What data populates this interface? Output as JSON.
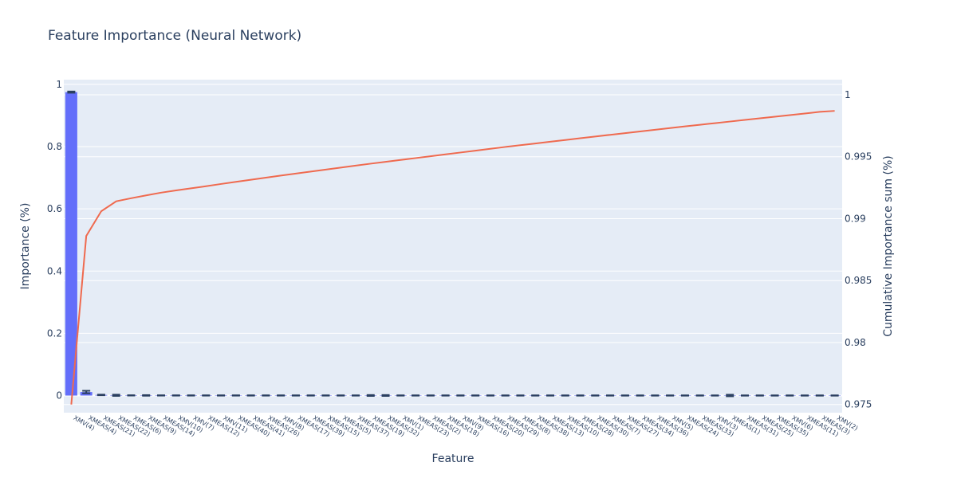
{
  "chart_data": {
    "type": "bar",
    "title": "Feature Importance (Neural Network)",
    "xlabel": "Feature",
    "ylabel": "Importance (%)",
    "y2label": "Cumulative Importance sum (%)",
    "ylim": [
      -0.055,
      1.015
    ],
    "y2lim": [
      0.97434,
      1.00122
    ],
    "yticks": [
      0,
      0.2,
      0.4,
      0.6,
      0.8,
      1
    ],
    "y2ticks": [
      0.975,
      0.98,
      0.985,
      0.99,
      0.995,
      1
    ],
    "categories": [
      "XMV(4)",
      "XMEAS(4)",
      "XMEAS(21)",
      "XMEAS(22)",
      "XMEAS(6)",
      "XMEAS(9)",
      "XMEAS(14)",
      "XMV(10)",
      "XMV(7)",
      "XMEAS(12)",
      "XMV(11)",
      "XMEAS(40)",
      "XMEAS(41)",
      "XMEAS(26)",
      "XMV(8)",
      "XMEAS(17)",
      "XMEAS(39)",
      "XMEAS(15)",
      "XMEAS(5)",
      "XMEAS(37)",
      "XMEAS(19)",
      "XMEAS(32)",
      "XMV(1)",
      "XMEAS(23)",
      "XMEAS(2)",
      "XMEAS(18)",
      "XMV(9)",
      "XMEAS(16)",
      "XMEAS(20)",
      "XMEAS(29)",
      "XMEAS(8)",
      "XMEAS(38)",
      "XMEAS(13)",
      "XMEAS(10)",
      "XMEAS(28)",
      "XMEAS(30)",
      "XMEAS(7)",
      "XMEAS(27)",
      "XMEAS(34)",
      "XMEAS(36)",
      "XMV(5)",
      "XMEAS(24)",
      "XMEAS(33)",
      "XMV(3)",
      "XMEAS(1)",
      "XMEAS(31)",
      "XMEAS(25)",
      "XMEAS(35)",
      "XMV(6)",
      "XMEAS(11)",
      "XMEAS(3)",
      "XMV(2)"
    ],
    "series": [
      {
        "type": "bar",
        "name": "",
        "color": "#636efa",
        "values": [
          0.975,
          0.0113,
          0.002,
          0.00085,
          0.00055,
          0.00045,
          0.0004,
          0.00036,
          0.00034,
          0.00033,
          0.00032,
          0.00031,
          0.0003,
          0.00029,
          0.00028,
          0.00027,
          0.00027,
          0.00026,
          0.00026,
          0.00025,
          0.00025,
          0.00024,
          0.00024,
          0.00024,
          0.00023,
          0.00023,
          0.00022,
          0.00022,
          0.00022,
          0.00021,
          0.00021,
          0.00021,
          0.0002,
          0.0002,
          0.0002,
          0.0002,
          0.00019,
          0.00019,
          0.00019,
          0.00019,
          0.00018,
          0.00018,
          0.00018,
          0.00018,
          0.00018,
          0.00017,
          0.00017,
          0.00017,
          0.00017,
          0.00016,
          0.00016,
          0.00016
        ],
        "error": [
          0.002,
          0.004,
          0.001,
          0.002,
          0.0005,
          0.001,
          0.0005,
          0.0005,
          0.0005,
          0.0005,
          0.0005,
          0.0005,
          0.0005,
          0.0005,
          0.0005,
          0.0005,
          0.0005,
          0.0005,
          0.0005,
          0.0005,
          0.0015,
          0.0015,
          0.0005,
          0.0005,
          0.0005,
          0.0005,
          0.0005,
          0.0005,
          0.0005,
          0.0005,
          0.0005,
          0.0005,
          0.0005,
          0.0005,
          0.0005,
          0.0005,
          0.0005,
          0.0005,
          0.0005,
          0.0005,
          0.0005,
          0.0005,
          0.0005,
          0.0005,
          0.0025,
          0.0005,
          0.0005,
          0.0005,
          0.0005,
          0.0005,
          0.0005,
          0.0005
        ],
        "error_color": "#2a3f5f"
      },
      {
        "type": "line",
        "name": "",
        "axis": "y2",
        "color": "#ef6a4f",
        "values": [
          0.975,
          0.9886,
          0.9906,
          0.9914,
          0.99165,
          0.99188,
          0.9921,
          0.99228,
          0.99245,
          0.99262,
          0.9928,
          0.99297,
          0.99314,
          0.99331,
          0.99348,
          0.99364,
          0.9938,
          0.99396,
          0.99412,
          0.99428,
          0.99444,
          0.99459,
          0.99474,
          0.99489,
          0.99504,
          0.99519,
          0.99534,
          0.99549,
          0.99564,
          0.99579,
          0.99593,
          0.99607,
          0.99621,
          0.99635,
          0.99649,
          0.99663,
          0.99677,
          0.9969,
          0.99704,
          0.99718,
          0.99731,
          0.99745,
          0.99758,
          0.99771,
          0.99784,
          0.99797,
          0.9981,
          0.99823,
          0.99836,
          0.99849,
          0.99862,
          0.9987
        ]
      }
    ],
    "grid": true,
    "legend": "none",
    "colors": {
      "plot_bg": "#e5ecf6",
      "grid": "#ffffff",
      "text": "#2a3f5f"
    }
  }
}
